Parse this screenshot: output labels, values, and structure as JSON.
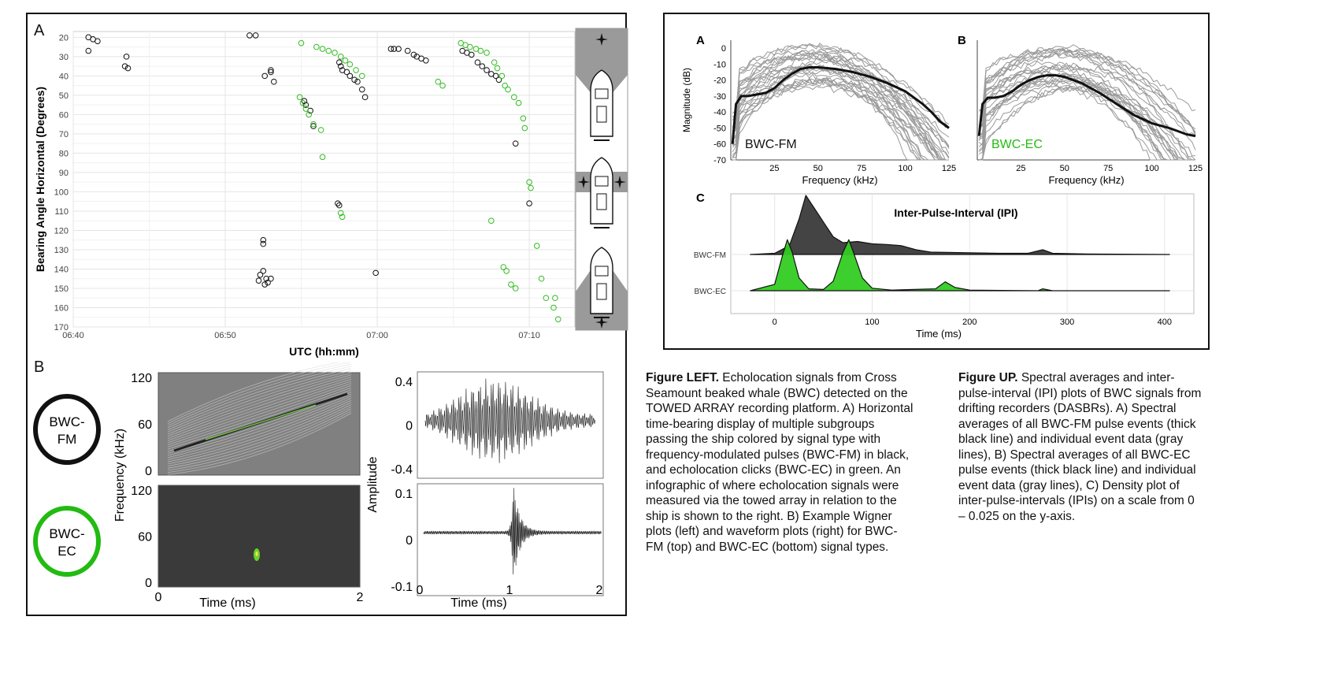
{
  "left": {
    "panelA": {
      "letter": "A",
      "chart_data": {
        "type": "scatter",
        "xlabel": "UTC (hh:mm)",
        "ylabel": "Bearing Angle Horizontal (Degrees)",
        "x_ticks": [
          "06:40",
          "06:50",
          "07:00",
          "07:10"
        ],
        "y_ticks": [
          20,
          30,
          40,
          50,
          60,
          70,
          80,
          90,
          100,
          110,
          120,
          130,
          140,
          150,
          160,
          170
        ],
        "xlim": [
          "06:40",
          "07:13"
        ],
        "ylim": [
          170,
          17
        ],
        "grid": true,
        "colors": {
          "BWC-FM": "#111111",
          "BWC-EC": "#33bb22"
        },
        "series": [
          {
            "values": [
              [
                "06:41",
                20
              ],
              [
                "06:41.3",
                21
              ],
              [
                "06:41.6",
                22
              ],
              [
                "06:41",
                27
              ],
              [
                "06:43.5",
                30
              ],
              [
                "06:43.4",
                35
              ],
              [
                "06:43.6",
                36
              ],
              [
                "06:51.6",
                19
              ],
              [
                "06:52",
                19
              ],
              [
                "06:52.6",
                40
              ],
              [
                "06:53",
                37
              ],
              [
                "06:53",
                38
              ],
              [
                "06:53.2",
                43
              ],
              [
                "06:55.2",
                53
              ],
              [
                "06:55.3",
                55
              ],
              [
                "06:55.6",
                58
              ],
              [
                "06:55.8",
                66
              ],
              [
                "06:57.4",
                106
              ],
              [
                "06:57.5",
                107
              ],
              [
                "06:57.5",
                33
              ],
              [
                "06:57.6",
                35
              ],
              [
                "06:57.7",
                37
              ],
              [
                "06:58",
                38
              ],
              [
                "06:58.2",
                40
              ],
              [
                "06:58.5",
                42
              ],
              [
                "06:58.7",
                43
              ],
              [
                "06:59",
                47
              ],
              [
                "06:59.2",
                51
              ],
              [
                "07:00.9",
                26
              ],
              [
                "07:01.1",
                26
              ],
              [
                "07:01.4",
                26
              ],
              [
                "07:02",
                27
              ],
              [
                "07:02.4",
                29
              ],
              [
                "07:02.6",
                30
              ],
              [
                "07:02.9",
                31
              ],
              [
                "07:03.2",
                32
              ],
              [
                "07:05.6",
                27
              ],
              [
                "07:05.9",
                28
              ],
              [
                "07:06.2",
                29
              ],
              [
                "07:06.6",
                33
              ],
              [
                "07:06.9",
                35
              ],
              [
                "07:07.2",
                37
              ],
              [
                "07:07.5",
                39
              ],
              [
                "07:07.8",
                40
              ],
              [
                "07:08",
                42
              ],
              [
                "06:52.5",
                125
              ],
              [
                "06:52.5",
                127
              ],
              [
                "06:52.3",
                143
              ],
              [
                "06:52.2",
                146
              ],
              [
                "06:52.5",
                141
              ],
              [
                "06:52.7",
                145
              ],
              [
                "06:52.8",
                147
              ],
              [
                "06:52.6",
                148
              ],
              [
                "06:53",
                145
              ],
              [
                "06:59.9",
                142
              ],
              [
                "07:09.1",
                75
              ],
              [
                "07:10",
                106
              ]
            ]
          },
          {
            "values": [
              [
                "06:55",
                23
              ],
              [
                "06:56",
                25
              ],
              [
                "06:56.4",
                26
              ],
              [
                "06:56.8",
                27
              ],
              [
                "06:57.2",
                28
              ],
              [
                "06:57.6",
                30
              ],
              [
                "06:57.9",
                32
              ],
              [
                "06:58.2",
                34
              ],
              [
                "06:58.6",
                37
              ],
              [
                "06:59",
                40
              ],
              [
                "06:54.9",
                51
              ],
              [
                "06:55.1",
                54
              ],
              [
                "06:55.3",
                57
              ],
              [
                "06:55.5",
                60
              ],
              [
                "06:55.8",
                65
              ],
              [
                "06:56.3",
                68
              ],
              [
                "06:56.4",
                82
              ],
              [
                "06:57.6",
                111
              ],
              [
                "06:57.7",
                113
              ],
              [
                "07:04",
                43
              ],
              [
                "07:04.3",
                45
              ],
              [
                "07:05.5",
                23
              ],
              [
                "07:05.8",
                24
              ],
              [
                "07:06.1",
                25
              ],
              [
                "07:06.5",
                26
              ],
              [
                "07:06.8",
                27
              ],
              [
                "07:07.2",
                28
              ],
              [
                "07:07.7",
                33
              ],
              [
                "07:07.9",
                36
              ],
              [
                "07:08.2",
                40
              ],
              [
                "07:08.4",
                45
              ],
              [
                "07:08.6",
                47
              ],
              [
                "07:09",
                51
              ],
              [
                "07:09.3",
                54
              ],
              [
                "07:09.6",
                62
              ],
              [
                "07:09.7",
                67
              ],
              [
                "07:07.5",
                115
              ],
              [
                "07:08.3",
                139
              ],
              [
                "07:08.5",
                141
              ],
              [
                "07:08.8",
                148
              ],
              [
                "07:09.1",
                150
              ],
              [
                "07:10",
                95
              ],
              [
                "07:10.1",
                98
              ],
              [
                "07:10.5",
                128
              ],
              [
                "07:10.8",
                145
              ],
              [
                "07:11.1",
                155
              ],
              [
                "07:11.6",
                160
              ],
              [
                "07:11.9",
                166
              ],
              [
                "07:11.7",
                155
              ]
            ]
          }
        ]
      }
    },
    "panelB": {
      "letter": "B",
      "legend": [
        {
          "label": "BWC-\nFM",
          "line1": "BWC-",
          "line2": "FM",
          "color": "#111111"
        },
        {
          "label": "BWC-\nEC",
          "line1": "BWC-",
          "line2": "EC",
          "color": "#22bb11"
        }
      ],
      "wigner": {
        "ylabel": "Frequency (kHz)",
        "xlabel": "Time (ms)",
        "y_ticks": [
          "120",
          "60",
          "0"
        ],
        "x_ticks": [
          "0",
          "2"
        ]
      },
      "waveform": {
        "ylabel": "Amplitude",
        "xlabel": "Time (ms)",
        "top_y_ticks": [
          "0.4",
          "0",
          "-0.4"
        ],
        "bottom_y_ticks": [
          "0.1",
          "0",
          "-0.1"
        ],
        "x_ticks": [
          "0",
          "1",
          "2"
        ]
      }
    },
    "caption": {
      "bold": "Figure LEFT.",
      "text": " Echolocation signals from Cross Seamount beaked whale (BWC) detected on the TOWED ARRAY recording platform. A) Horizontal time-bearing display of multiple subgroups passing the ship colored by signal type with frequency-modulated pulses (BWC-FM) in black, and echolocation clicks (BWC-EC) in green. An infographic of where echolocation signals were measured via the towed array in relation to the ship is shown to the right. B) Example Wigner plots (left) and waveform plots (right) for BWC-FM (top) and BWC-EC (bottom) signal types."
    }
  },
  "right": {
    "panelA": {
      "letter": "A",
      "chart_data": {
        "type": "line",
        "ylabel": "Magnitude (dB)",
        "xlabel": "Frequency (kHz)",
        "x_ticks": [
          "25",
          "50",
          "75",
          "100",
          "125"
        ],
        "y_ticks": [
          "0",
          "-10",
          "-20",
          "-30",
          "-40",
          "-50",
          "-60",
          "-70"
        ],
        "xlim": [
          0,
          125
        ],
        "ylim": [
          -70,
          5
        ],
        "label": "BWC-FM",
        "mean": [
          [
            1,
            -60
          ],
          [
            3,
            -35
          ],
          [
            6,
            -30
          ],
          [
            10,
            -30
          ],
          [
            15,
            -29
          ],
          [
            20,
            -28
          ],
          [
            25,
            -25
          ],
          [
            30,
            -20
          ],
          [
            35,
            -16
          ],
          [
            40,
            -13
          ],
          [
            45,
            -12
          ],
          [
            50,
            -12
          ],
          [
            60,
            -13
          ],
          [
            70,
            -15
          ],
          [
            80,
            -18
          ],
          [
            90,
            -22
          ],
          [
            100,
            -27
          ],
          [
            110,
            -35
          ],
          [
            115,
            -40
          ],
          [
            120,
            -46
          ],
          [
            125,
            -50
          ]
        ]
      }
    },
    "panelB": {
      "letter": "B",
      "chart_data": {
        "type": "line",
        "xlabel": "Frequency (kHz)",
        "x_ticks": [
          "25",
          "50",
          "75",
          "100",
          "125"
        ],
        "xlim": [
          0,
          125
        ],
        "ylim": [
          -70,
          5
        ],
        "label": "BWC-EC",
        "mean": [
          [
            1,
            -55
          ],
          [
            3,
            -35
          ],
          [
            6,
            -31
          ],
          [
            10,
            -31
          ],
          [
            15,
            -30
          ],
          [
            20,
            -27
          ],
          [
            25,
            -23
          ],
          [
            30,
            -20
          ],
          [
            35,
            -18
          ],
          [
            40,
            -17
          ],
          [
            45,
            -17
          ],
          [
            50,
            -18
          ],
          [
            60,
            -22
          ],
          [
            70,
            -28
          ],
          [
            80,
            -35
          ],
          [
            90,
            -42
          ],
          [
            100,
            -47
          ],
          [
            110,
            -50
          ],
          [
            115,
            -52
          ],
          [
            120,
            -54
          ],
          [
            125,
            -55
          ]
        ]
      }
    },
    "panelC": {
      "letter": "C",
      "chart_data": {
        "type": "area",
        "title": "Inter-Pulse-Interval  (IPI)",
        "xlabel": "Time (ms)",
        "categories": [
          "BWC-FM",
          "BWC-EC"
        ],
        "x_ticks": [
          "0",
          "100",
          "200",
          "300",
          "400"
        ],
        "xlim": [
          -45,
          430
        ],
        "series": [
          {
            "values": [
              [
                -25,
                0
              ],
              [
                0,
                0.02
              ],
              [
                15,
                0.15
              ],
              [
                25,
                0.6
              ],
              [
                32,
                1.0
              ],
              [
                40,
                0.8
              ],
              [
                50,
                0.55
              ],
              [
                60,
                0.3
              ],
              [
                70,
                0.2
              ],
              [
                85,
                0.22
              ],
              [
                100,
                0.18
              ],
              [
                115,
                0.17
              ],
              [
                130,
                0.15
              ],
              [
                145,
                0.08
              ],
              [
                160,
                0.04
              ],
              [
                200,
                0.03
              ],
              [
                230,
                0.02
              ],
              [
                260,
                0.02
              ],
              [
                275,
                0.08
              ],
              [
                285,
                0.02
              ],
              [
                320,
                0.01
              ],
              [
                405,
                0.0
              ]
            ]
          },
          {
            "values": [
              [
                -25,
                0
              ],
              [
                0,
                0.1
              ],
              [
                8,
                0.55
              ],
              [
                13,
                0.8
              ],
              [
                18,
                0.6
              ],
              [
                25,
                0.2
              ],
              [
                35,
                0.03
              ],
              [
                50,
                0.02
              ],
              [
                60,
                0.15
              ],
              [
                70,
                0.6
              ],
              [
                76,
                0.8
              ],
              [
                82,
                0.55
              ],
              [
                90,
                0.2
              ],
              [
                100,
                0.04
              ],
              [
                120,
                0.01
              ],
              [
                165,
                0.03
              ],
              [
                175,
                0.14
              ],
              [
                185,
                0.05
              ],
              [
                200,
                0.01
              ],
              [
                270,
                0.0
              ],
              [
                275,
                0.03
              ],
              [
                285,
                0.0
              ],
              [
                405,
                0.0
              ]
            ]
          }
        ]
      }
    },
    "caption": {
      "bold": "Figure UP.",
      "text": " Spectral averages and inter-pulse-interval (IPI) plots of BWC signals from drifting recorders (DASBRs). A) Spectral averages of all BWC-FM pulse events (thick black line) and individual event data (gray lines), B) Spectral averages of all BWC-EC pulse events (thick black line) and individual event data (gray lines), C) Density plot of inter-pulse-intervals (IPIs) on a scale from 0 – 0.025 on the y-axis."
    }
  }
}
